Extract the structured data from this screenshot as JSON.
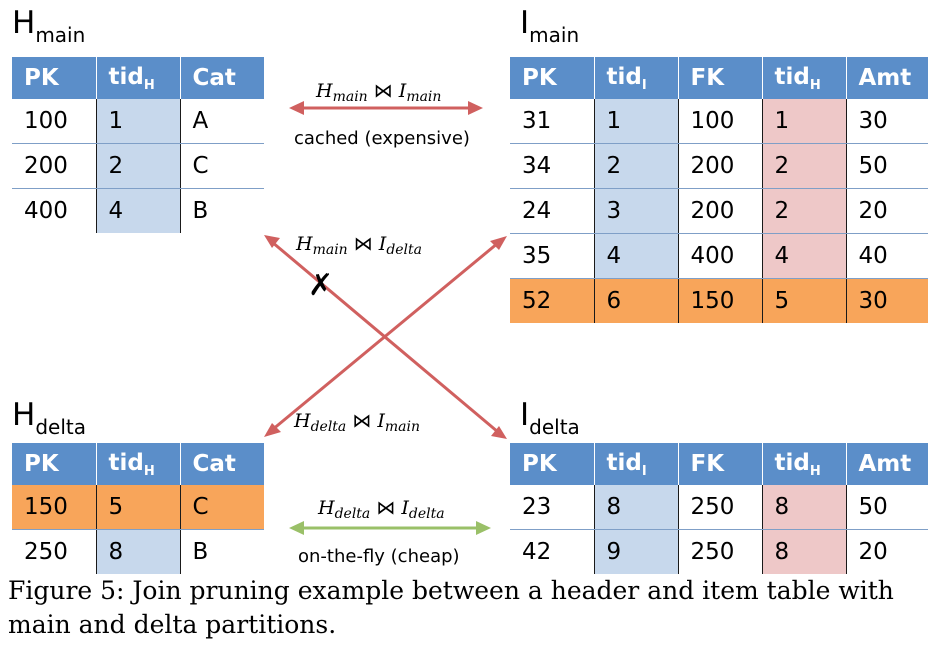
{
  "tables": {
    "h_main": {
      "title": "H",
      "title_sub": "main",
      "headers": [
        [
          "PK",
          ""
        ],
        [
          "tid",
          "H"
        ],
        [
          "Cat",
          ""
        ]
      ],
      "rows": [
        [
          "100",
          "1",
          "A"
        ],
        [
          "200",
          "2",
          "C"
        ],
        [
          "400",
          "4",
          "B"
        ]
      ]
    },
    "i_main": {
      "title": "I",
      "title_sub": "main",
      "headers": [
        [
          "PK",
          ""
        ],
        [
          "tid",
          "I"
        ],
        [
          "FK",
          ""
        ],
        [
          "tid",
          "H"
        ],
        [
          "Amt",
          ""
        ]
      ],
      "rows": [
        [
          "31",
          "1",
          "100",
          "1",
          "30"
        ],
        [
          "34",
          "2",
          "200",
          "2",
          "50"
        ],
        [
          "24",
          "3",
          "200",
          "2",
          "20"
        ],
        [
          "35",
          "4",
          "400",
          "4",
          "40"
        ],
        [
          "52",
          "6",
          "150",
          "5",
          "30"
        ]
      ]
    },
    "h_delta": {
      "title": "H",
      "title_sub": "delta",
      "headers": [
        [
          "PK",
          ""
        ],
        [
          "tid",
          "H"
        ],
        [
          "Cat",
          ""
        ]
      ],
      "rows": [
        [
          "150",
          "5",
          "C"
        ],
        [
          "250",
          "8",
          "B"
        ]
      ]
    },
    "i_delta": {
      "title": "I",
      "title_sub": "delta",
      "headers": [
        [
          "PK",
          ""
        ],
        [
          "tid",
          "I"
        ],
        [
          "FK",
          ""
        ],
        [
          "tid",
          "H"
        ],
        [
          "Amt",
          ""
        ]
      ],
      "rows": [
        [
          "23",
          "8",
          "250",
          "8",
          "50"
        ],
        [
          "42",
          "9",
          "250",
          "8",
          "20"
        ]
      ]
    }
  },
  "joins": {
    "main_main": {
      "left": "H",
      "left_sub": "main",
      "op": "⋈",
      "right": "I",
      "right_sub": "main",
      "note": "cached (expensive)"
    },
    "main_delta": {
      "left": "H",
      "left_sub": "main",
      "op": "⋈",
      "right": "I",
      "right_sub": "delta"
    },
    "delta_main": {
      "left": "H",
      "left_sub": "delta",
      "op": "⋈",
      "right": "I",
      "right_sub": "main"
    },
    "delta_delta": {
      "left": "H",
      "left_sub": "delta",
      "op": "⋈",
      "right": "I",
      "right_sub": "delta",
      "note": "on-the-fly (cheap)"
    }
  },
  "pruned_mark": "✗",
  "caption": "Figure 5: Join pruning example between a header and item table with main and delta partitions.",
  "colors": {
    "header_blue": "#5b8ec9",
    "tid_blue": "#c7d8ec",
    "tid_pink": "#eec8c8",
    "highlight_orange": "#f8a55a",
    "arrow_red": "#d0605f",
    "arrow_green": "#9ac068"
  }
}
